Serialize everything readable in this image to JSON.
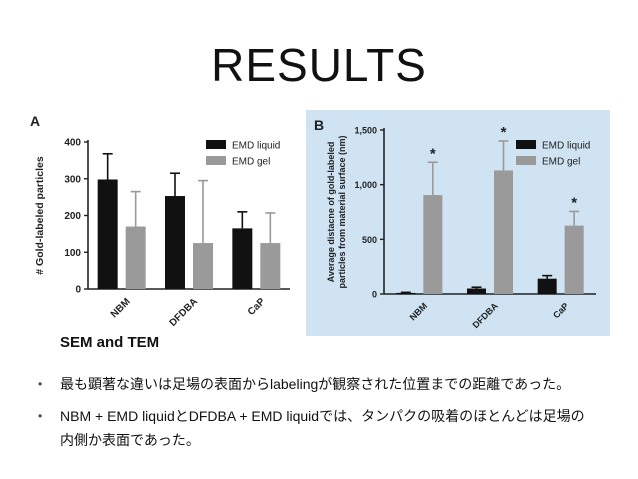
{
  "title": "RESULTS",
  "section_heading": "SEM and TEM",
  "bullets": [
    "最も顕著な違いは足場の表面からlabelingが観察された位置までの距離であった。",
    "NBM + EMD liquidとDFDBA + EMD liquidでは、タンパクの吸着のほとんどは足場の内側か表面であった。"
  ],
  "bullet_symbol": "•",
  "colors": {
    "liquid": "#111111",
    "gel": "#9a9a9a",
    "panel_b_bg": "#cfe3f3"
  },
  "chart_data": [
    {
      "panel_label": "A",
      "type": "bar",
      "title": "",
      "xlabel": "",
      "ylabel": "# Gold-labeled particles",
      "categories": [
        "NBM",
        "DFDBA",
        "CaP"
      ],
      "ylim": [
        0,
        400
      ],
      "yticks": [
        "0",
        "100",
        "200",
        "300",
        "400"
      ],
      "yticks_values": [
        0,
        100,
        200,
        300,
        400
      ],
      "series": [
        {
          "name": "EMD liquid",
          "values": [
            298,
            253,
            165
          ],
          "errors": [
            70,
            62,
            45
          ]
        },
        {
          "name": "EMD gel",
          "values": [
            170,
            125,
            125
          ],
          "errors": [
            95,
            170,
            82
          ]
        }
      ],
      "significance": [],
      "legend": "top-right"
    },
    {
      "panel_label": "B",
      "type": "bar",
      "title": "",
      "xlabel": "",
      "ylabel": "Average distacne of gold-labeled particles from material surface (nm)",
      "ylabel_lines": [
        "Average distacne of gold-labeled",
        "particles from material surface (nm)"
      ],
      "categories": [
        "NBM",
        "DFDBA",
        "CaP"
      ],
      "ylim": [
        0,
        1500
      ],
      "yticks": [
        "0",
        "500",
        "1,000",
        "1,500"
      ],
      "yticks_values": [
        0,
        500,
        1000,
        1500
      ],
      "series": [
        {
          "name": "EMD liquid",
          "values": [
            10,
            50,
            140
          ],
          "errors": [
            5,
            12,
            28
          ]
        },
        {
          "name": "EMD gel",
          "values": [
            905,
            1130,
            625
          ],
          "errors": [
            300,
            270,
            130
          ]
        }
      ],
      "significance": [
        "*",
        "*",
        "*"
      ],
      "legend": "top-right"
    }
  ]
}
